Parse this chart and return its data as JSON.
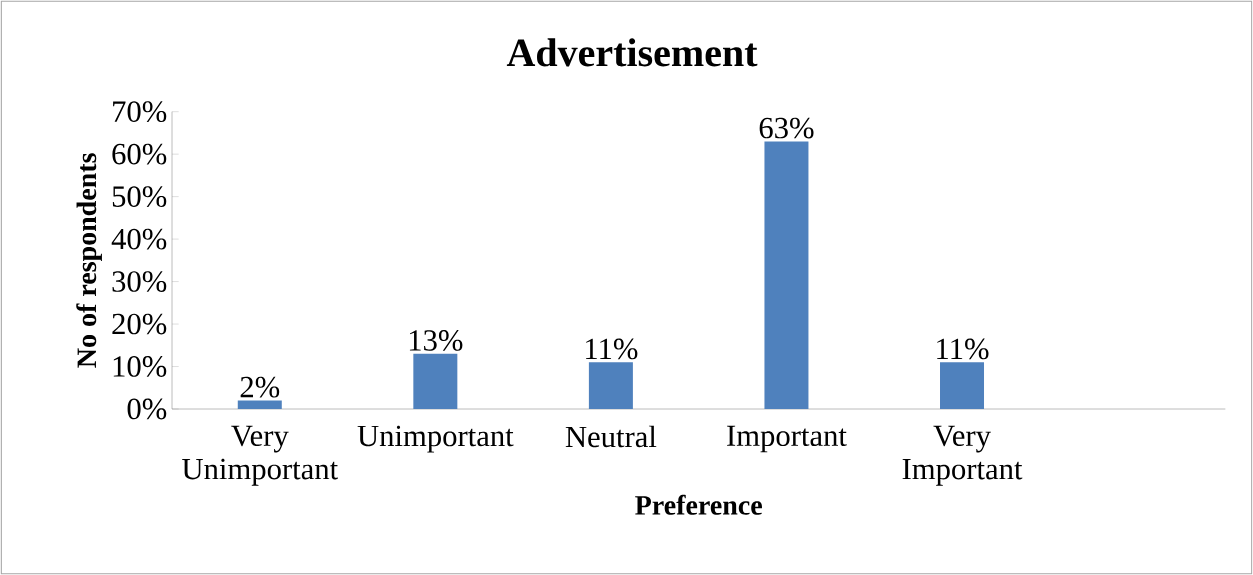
{
  "chart_data": {
    "type": "bar",
    "title": "Advertisement",
    "xlabel": "Preference",
    "ylabel": "No of respondents",
    "categories": [
      "Very Unimportant",
      "Unimportant",
      "Neutral",
      "Important",
      "Very Important",
      null
    ],
    "values": [
      2,
      13,
      11,
      63,
      11,
      null
    ],
    "value_labels": [
      "2%",
      "13%",
      "11%",
      "63%",
      "11%",
      null
    ],
    "color": "#4f81bd",
    "ylim": [
      0,
      70
    ],
    "yticks": [
      {
        "value": 0,
        "label": "0%"
      },
      {
        "value": 10,
        "label": "10%"
      },
      {
        "value": 20,
        "label": "20%"
      },
      {
        "value": 30,
        "label": "30%"
      },
      {
        "value": 40,
        "label": "40%"
      },
      {
        "value": 50,
        "label": "50%"
      },
      {
        "value": 60,
        "label": "60%"
      },
      {
        "value": 70,
        "label": "70%"
      }
    ],
    "tick_labels": "xy"
  }
}
